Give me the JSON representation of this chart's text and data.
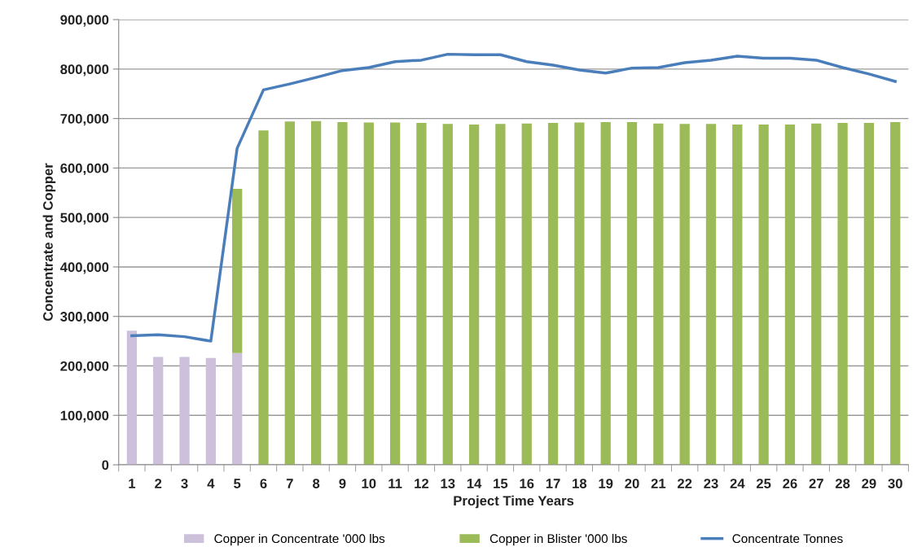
{
  "chart_data": {
    "type": "bar",
    "stacked": true,
    "xlabel": "Project Time Years",
    "ylabel": "Concentrate and Copper",
    "categories": [
      "1",
      "2",
      "3",
      "4",
      "5",
      "6",
      "7",
      "8",
      "9",
      "10",
      "11",
      "12",
      "13",
      "14",
      "15",
      "16",
      "17",
      "18",
      "19",
      "20",
      "21",
      "22",
      "23",
      "24",
      "25",
      "26",
      "27",
      "28",
      "29",
      "30"
    ],
    "series": [
      {
        "name": "Copper in Concentrate '000 lbs",
        "color": "#ccc0da",
        "values": [
          271000,
          218000,
          218000,
          216000,
          226000,
          null,
          null,
          null,
          null,
          null,
          null,
          null,
          null,
          null,
          null,
          null,
          null,
          null,
          null,
          null,
          null,
          null,
          null,
          null,
          null,
          null,
          null,
          null,
          null,
          null
        ]
      },
      {
        "name": "Copper in Blister '000 lbs",
        "color": "#9bbb59",
        "values": [
          null,
          null,
          null,
          null,
          332000,
          676000,
          694000,
          695000,
          693000,
          692000,
          692000,
          691000,
          689000,
          688000,
          689000,
          690000,
          691000,
          692000,
          693000,
          693000,
          690000,
          689000,
          689000,
          688000,
          688000,
          688000,
          690000,
          691000,
          691000,
          693000
        ]
      },
      {
        "name": "Concentrate Tonnes",
        "type": "line",
        "color": "#4a7ebb",
        "values": [
          261000,
          263000,
          259000,
          250000,
          640000,
          758000,
          770000,
          783000,
          797000,
          803000,
          815000,
          818000,
          830000,
          829000,
          829000,
          815000,
          808000,
          798000,
          792000,
          802000,
          803000,
          813000,
          818000,
          826000,
          822000,
          822000,
          818000,
          803000,
          790000,
          775000
        ]
      }
    ],
    "ylim": [
      0,
      900000
    ],
    "yticks": [
      {
        "value": 0,
        "label": "0"
      },
      {
        "value": 100000,
        "label": "100,000"
      },
      {
        "value": 200000,
        "label": "200,000"
      },
      {
        "value": 300000,
        "label": "300,000"
      },
      {
        "value": 400000,
        "label": "400,000"
      },
      {
        "value": 500000,
        "label": "500,000"
      },
      {
        "value": 600000,
        "label": "600,000"
      },
      {
        "value": 700000,
        "label": "700,000"
      },
      {
        "value": 800000,
        "label": "800,000"
      },
      {
        "value": 900000,
        "label": "900,000"
      }
    ],
    "grid": "y",
    "legend": "bottom"
  }
}
